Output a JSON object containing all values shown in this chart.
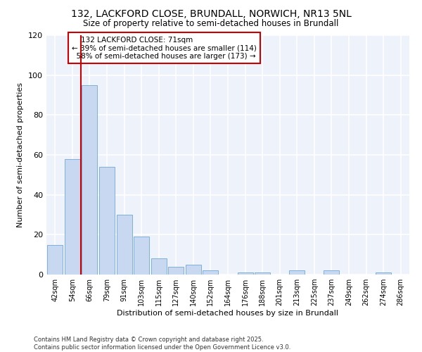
{
  "title_line1": "132, LACKFORD CLOSE, BRUNDALL, NORWICH, NR13 5NL",
  "title_line2": "Size of property relative to semi-detached houses in Brundall",
  "xlabel": "Distribution of semi-detached houses by size in Brundall",
  "ylabel": "Number of semi-detached properties",
  "categories": [
    "42sqm",
    "54sqm",
    "66sqm",
    "79sqm",
    "91sqm",
    "103sqm",
    "115sqm",
    "127sqm",
    "140sqm",
    "152sqm",
    "164sqm",
    "176sqm",
    "188sqm",
    "201sqm",
    "213sqm",
    "225sqm",
    "237sqm",
    "249sqm",
    "262sqm",
    "274sqm",
    "286sqm"
  ],
  "values": [
    15,
    58,
    95,
    54,
    30,
    19,
    8,
    4,
    5,
    2,
    0,
    1,
    1,
    0,
    2,
    0,
    2,
    0,
    0,
    1,
    0
  ],
  "bar_color": "#c8d8f0",
  "bar_edge_color": "#6ea8d8",
  "property_label": "132 LACKFORD CLOSE: 71sqm",
  "pct_smaller": 39,
  "n_smaller": 114,
  "pct_larger": 58,
  "n_larger": 173,
  "vline_x": 1.5,
  "vline_color": "#cc0000",
  "background_color": "#eef2fb",
  "grid_color": "#ffffff",
  "annotation_box_edge": "#cc0000",
  "ylim": [
    0,
    120
  ],
  "yticks": [
    0,
    20,
    40,
    60,
    80,
    100,
    120
  ],
  "footer": "Contains HM Land Registry data © Crown copyright and database right 2025.\nContains public sector information licensed under the Open Government Licence v3.0.",
  "title_fontsize": 10,
  "subtitle_fontsize": 8.5,
  "axis_label_fontsize": 8,
  "tick_fontsize": 7,
  "annotation_fontsize": 7.5,
  "footer_fontsize": 6
}
